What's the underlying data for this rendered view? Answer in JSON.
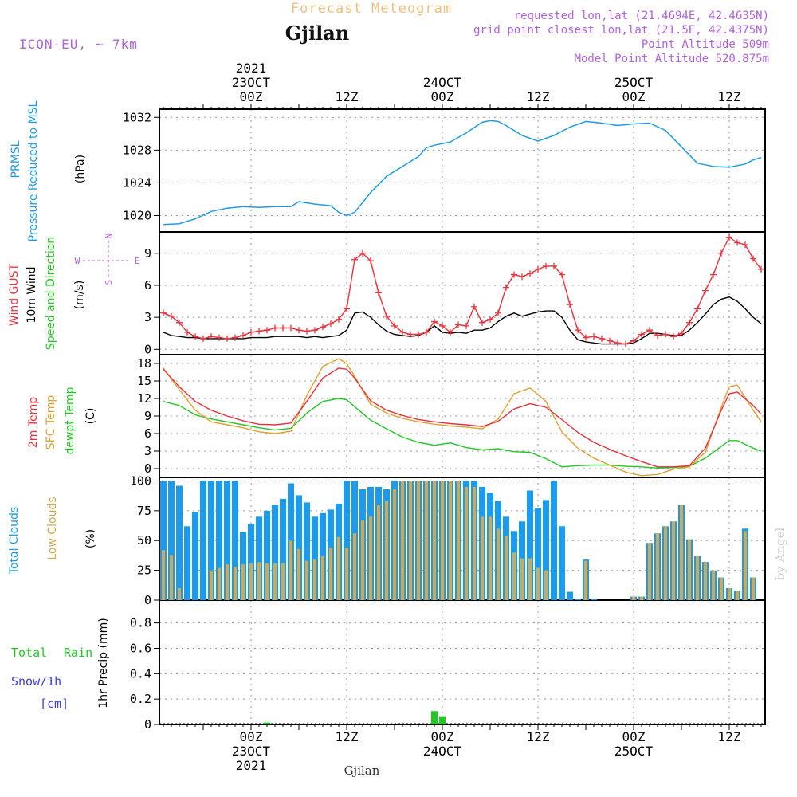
{
  "header": {
    "forecast_title": "Forecast Meteogram",
    "location": "Gjilan",
    "model": "ICON-EU, ~ 7km",
    "requested": "requested lon,lat (21.4694E, 42.4635N)",
    "grid_point": "grid point closest lon,lat (21.5E, 42.4375N)",
    "point_altitude": "Point Altitude 509m",
    "model_altitude": "Model Point Altitude 520.875m",
    "footer_location": "Gjilan",
    "watermark": "by Angel"
  },
  "colors": {
    "pressure": "#1e9be8",
    "gust": "#e8323c",
    "wind": "#000000",
    "temp2m": "#e8323c",
    "sfc": "#e0a030",
    "dewpt": "#22c822",
    "total_clouds": "#1a9bee",
    "low_clouds": "#d2a850",
    "rain": "#22c822",
    "purple": "#b060e0",
    "grid": "#999999"
  },
  "time_axis": {
    "top_labels": [
      {
        "h": 0,
        "lines": [
          "2021",
          "23OCT",
          "00Z"
        ]
      },
      {
        "h": 12,
        "lines": [
          "12Z"
        ]
      },
      {
        "h": 24,
        "lines": [
          "24OCT",
          "00Z"
        ]
      },
      {
        "h": 36,
        "lines": [
          "12Z"
        ]
      },
      {
        "h": 48,
        "lines": [
          "25OCT",
          "00Z"
        ]
      },
      {
        "h": 60,
        "lines": [
          "12Z"
        ]
      }
    ],
    "bottom_labels": [
      {
        "h": 0,
        "lines": [
          "00Z",
          "23OCT",
          "2021"
        ]
      },
      {
        "h": 12,
        "lines": [
          "12Z"
        ]
      },
      {
        "h": 24,
        "lines": [
          "00Z",
          "24OCT"
        ]
      },
      {
        "h": 36,
        "lines": [
          "12Z"
        ]
      },
      {
        "h": 48,
        "lines": [
          "00Z",
          "25OCT"
        ]
      },
      {
        "h": 60,
        "lines": [
          "12Z"
        ]
      }
    ]
  },
  "panels": {
    "pressure": {
      "labels": [
        "PRMSL",
        "Pressure Reduced to MSL",
        "(hPa)"
      ]
    },
    "wind": {
      "labels": [
        "Wind GUST",
        "10m Wind",
        "Speed and Direction",
        "(m/s)"
      ],
      "compass": {
        "n": "N",
        "s": "S",
        "w": "W",
        "e": "E"
      }
    },
    "temp": {
      "labels": [
        "2m Temp",
        "SFC Temp",
        "dewpt Temp",
        "(C)"
      ]
    },
    "clouds": {
      "labels": [
        "Total Clouds",
        "Low Clouds",
        "(%)"
      ]
    },
    "precip": {
      "labels": [
        "Total",
        "Rain",
        "Snow/1h",
        "[cm]",
        "1hr Precip (mm)"
      ]
    }
  },
  "chart_data": [
    {
      "panel": "pressure",
      "type": "line",
      "ylabel": "(hPa)",
      "ylim": [
        1018,
        1033
      ],
      "yticks": [
        1020,
        1024,
        1028,
        1032
      ],
      "x_hours": [
        -11,
        -9,
        -7,
        -5,
        -3,
        -1,
        1,
        3,
        5,
        6,
        8,
        10,
        11,
        12,
        13,
        15,
        17,
        19,
        21,
        22,
        23,
        25,
        27,
        29,
        30,
        31,
        32,
        34,
        36,
        38,
        40,
        42,
        44,
        46,
        48,
        50,
        52,
        54,
        56,
        58,
        60,
        62,
        63,
        64
      ],
      "series": [
        {
          "name": "PRMSL",
          "values": [
            1018.9,
            1019.0,
            1019.6,
            1020.5,
            1020.9,
            1021.1,
            1021.0,
            1021.1,
            1021.1,
            1021.7,
            1021.4,
            1021.2,
            1020.4,
            1020.0,
            1020.4,
            1022.8,
            1024.8,
            1026.0,
            1027.2,
            1028.3,
            1028.6,
            1029.0,
            1030.1,
            1031.4,
            1031.6,
            1031.5,
            1031.0,
            1029.8,
            1029.1,
            1029.8,
            1030.8,
            1031.5,
            1031.3,
            1031.0,
            1031.2,
            1031.3,
            1030.4,
            1028.4,
            1026.4,
            1026.0,
            1025.9,
            1026.3,
            1026.8,
            1027.1
          ]
        }
      ]
    },
    {
      "panel": "wind",
      "type": "line",
      "ylabel": "(m/s)",
      "ylim": [
        -0.5,
        11
      ],
      "yticks": [
        0,
        3,
        6,
        9
      ],
      "x_hours": [
        -11,
        -10,
        -9,
        -8,
        -7,
        -6,
        -5,
        -4,
        -3,
        -2,
        -1,
        0,
        1,
        2,
        3,
        4,
        5,
        6,
        7,
        8,
        9,
        10,
        11,
        12,
        13,
        14,
        15,
        16,
        17,
        18,
        19,
        20,
        21,
        22,
        23,
        24,
        25,
        26,
        27,
        28,
        29,
        30,
        31,
        32,
        33,
        34,
        35,
        36,
        37,
        38,
        39,
        40,
        41,
        42,
        43,
        44,
        45,
        46,
        47,
        48,
        49,
        50,
        51,
        52,
        53,
        54,
        55,
        56,
        57,
        58,
        59,
        60,
        61,
        62,
        63,
        64
      ],
      "series": [
        {
          "name": "Wind GUST",
          "values": [
            3.4,
            3.1,
            2.5,
            1.6,
            1.2,
            1.0,
            1.2,
            1.1,
            1.0,
            1.1,
            1.3,
            1.6,
            1.7,
            1.8,
            2.0,
            2.0,
            2.0,
            1.8,
            1.7,
            1.8,
            2.1,
            2.4,
            2.8,
            3.8,
            8.4,
            9.0,
            8.3,
            5.3,
            3.1,
            2.2,
            1.6,
            1.4,
            1.4,
            1.6,
            2.6,
            2.2,
            1.6,
            2.3,
            2.2,
            4.0,
            2.5,
            2.8,
            3.4,
            5.8,
            7.0,
            6.8,
            7.1,
            7.5,
            7.8,
            7.8,
            7.0,
            4.2,
            1.8,
            1.1,
            1.2,
            1.0,
            0.8,
            0.6,
            0.5,
            0.8,
            1.4,
            1.8,
            1.3,
            1.4,
            1.2,
            1.5,
            2.5,
            3.8,
            5.5,
            7.0,
            9.0,
            10.5,
            10.0,
            9.8,
            8.5,
            7.5
          ]
        },
        {
          "name": "10m Wind",
          "values": [
            1.6,
            1.3,
            1.2,
            1.1,
            1.1,
            1.0,
            1.0,
            1.0,
            1.0,
            1.0,
            1.0,
            1.1,
            1.1,
            1.1,
            1.2,
            1.2,
            1.2,
            1.2,
            1.1,
            1.2,
            1.1,
            1.2,
            1.3,
            1.8,
            3.4,
            3.5,
            3.0,
            2.3,
            1.7,
            1.4,
            1.3,
            1.2,
            1.3,
            1.6,
            2.2,
            1.6,
            1.5,
            1.6,
            1.5,
            1.8,
            1.8,
            2.0,
            2.6,
            3.1,
            3.4,
            3.1,
            3.3,
            3.5,
            3.6,
            3.6,
            3.0,
            1.8,
            0.9,
            0.7,
            0.6,
            0.5,
            0.5,
            0.5,
            0.5,
            0.6,
            1.0,
            1.5,
            1.5,
            1.4,
            1.3,
            1.3,
            1.8,
            2.5,
            3.3,
            4.2,
            4.7,
            4.9,
            4.5,
            3.8,
            3.0,
            2.4
          ]
        }
      ]
    },
    {
      "panel": "temp",
      "type": "line",
      "ylabel": "(C)",
      "ylim": [
        -1.5,
        19.5
      ],
      "yticks": [
        0,
        3,
        6,
        9,
        12,
        15,
        18
      ],
      "x_hours": [
        -11,
        -9,
        -7,
        -5,
        -3,
        -1,
        1,
        3,
        5,
        7,
        9,
        11,
        12,
        13,
        15,
        17,
        19,
        21,
        23,
        25,
        27,
        29,
        31,
        33,
        35,
        37,
        39,
        41,
        43,
        45,
        47,
        49,
        51,
        53,
        55,
        57,
        59,
        60,
        61,
        63,
        64
      ],
      "series": [
        {
          "name": "2m Temp",
          "values": [
            17.0,
            14.0,
            11.5,
            10.0,
            9.0,
            8.2,
            7.6,
            7.5,
            7.8,
            11.5,
            15.5,
            17.2,
            17.0,
            15.5,
            11.6,
            10.0,
            9.1,
            8.4,
            8.0,
            7.7,
            7.5,
            7.2,
            8.1,
            10.2,
            11.1,
            10.5,
            8.4,
            6.2,
            4.5,
            3.3,
            2.2,
            1.2,
            0.3,
            0.3,
            0.5,
            3.5,
            10.0,
            12.8,
            13.1,
            10.8,
            9.3
          ]
        },
        {
          "name": "SFC Temp",
          "values": [
            17.2,
            13.5,
            10.0,
            8.0,
            7.5,
            7.0,
            6.3,
            6.0,
            6.4,
            12.5,
            17.5,
            18.8,
            18.0,
            15.8,
            11.0,
            9.5,
            8.6,
            8.0,
            7.6,
            7.3,
            7.1,
            6.8,
            8.5,
            12.8,
            13.8,
            11.5,
            6.3,
            3.5,
            1.8,
            0.6,
            -0.6,
            -1.2,
            -1.0,
            -0.1,
            0.3,
            2.8,
            10.5,
            14.0,
            14.3,
            10.0,
            8.0
          ]
        },
        {
          "name": "dewpt Temp",
          "values": [
            11.5,
            10.8,
            9.2,
            8.5,
            8.0,
            7.5,
            7.0,
            6.6,
            6.9,
            9.5,
            11.5,
            12.0,
            11.8,
            10.6,
            8.3,
            6.8,
            5.4,
            4.5,
            4.0,
            4.4,
            3.6,
            3.2,
            3.4,
            2.9,
            2.8,
            1.7,
            0.3,
            0.5,
            0.6,
            0.6,
            0.4,
            0.3,
            0.1,
            0.2,
            0.4,
            1.8,
            3.8,
            4.8,
            4.8,
            3.5,
            3.0
          ]
        }
      ]
    },
    {
      "panel": "clouds",
      "type": "bar",
      "ylabel": "(%)",
      "ylim": [
        0,
        103
      ],
      "yticks": [
        0,
        25,
        50,
        75,
        100
      ],
      "x_hours": [
        -11,
        -10,
        -9,
        -8,
        -7,
        -6,
        -5,
        -4,
        -3,
        -2,
        -1,
        0,
        1,
        2,
        3,
        4,
        5,
        6,
        7,
        8,
        9,
        10,
        11,
        12,
        13,
        14,
        15,
        16,
        17,
        18,
        19,
        20,
        21,
        22,
        23,
        24,
        25,
        26,
        27,
        28,
        29,
        30,
        31,
        32,
        33,
        34,
        35,
        36,
        37,
        38,
        39,
        40,
        41,
        42,
        43,
        44,
        45,
        46,
        47,
        48,
        49,
        50,
        51,
        52,
        53,
        54,
        55,
        56,
        57,
        58,
        59,
        60,
        61,
        62,
        63,
        64
      ],
      "series": [
        {
          "name": "Total Clouds",
          "values": [
            100,
            100,
            96,
            62,
            74,
            100,
            100,
            100,
            100,
            100,
            57,
            64,
            70,
            75,
            80,
            85,
            98,
            88,
            82,
            70,
            73,
            76,
            81,
            100,
            100,
            93,
            95,
            95,
            93,
            100,
            100,
            100,
            100,
            100,
            100,
            100,
            100,
            100,
            100,
            100,
            95,
            90,
            83,
            70,
            58,
            66,
            92,
            77,
            84,
            100,
            62,
            7,
            1,
            34,
            1,
            0,
            0,
            0,
            0,
            3,
            3,
            48,
            56,
            62,
            66,
            80,
            51,
            37,
            32,
            25,
            19,
            10,
            8,
            60,
            19,
            0
          ]
        },
        {
          "name": "Low Clouds",
          "values": [
            42,
            38,
            10,
            0,
            0,
            0,
            25,
            27,
            30,
            28,
            30,
            31,
            32,
            31,
            31,
            31,
            50,
            43,
            33,
            34,
            37,
            44,
            53,
            44,
            56,
            67,
            70,
            80,
            83,
            93,
            100,
            100,
            100,
            100,
            100,
            100,
            100,
            100,
            95,
            95,
            70,
            70,
            60,
            54,
            40,
            35,
            35,
            27,
            25,
            0,
            0,
            0,
            0,
            33,
            0,
            0,
            0,
            0,
            0,
            3,
            3,
            48,
            56,
            62,
            66,
            80,
            51,
            37,
            32,
            25,
            19,
            10,
            8,
            58,
            19,
            0
          ]
        }
      ]
    },
    {
      "panel": "precip",
      "type": "bar",
      "ylabel": "1hr Precip (mm)",
      "ylim": [
        0,
        0.98
      ],
      "yticks": [
        0,
        0.2,
        0.4,
        0.6,
        0.8
      ],
      "x_hours": [
        2,
        23,
        24
      ],
      "series": [
        {
          "name": "Total Rain",
          "values": [
            0.015,
            0.105,
            0.065
          ]
        }
      ]
    }
  ]
}
